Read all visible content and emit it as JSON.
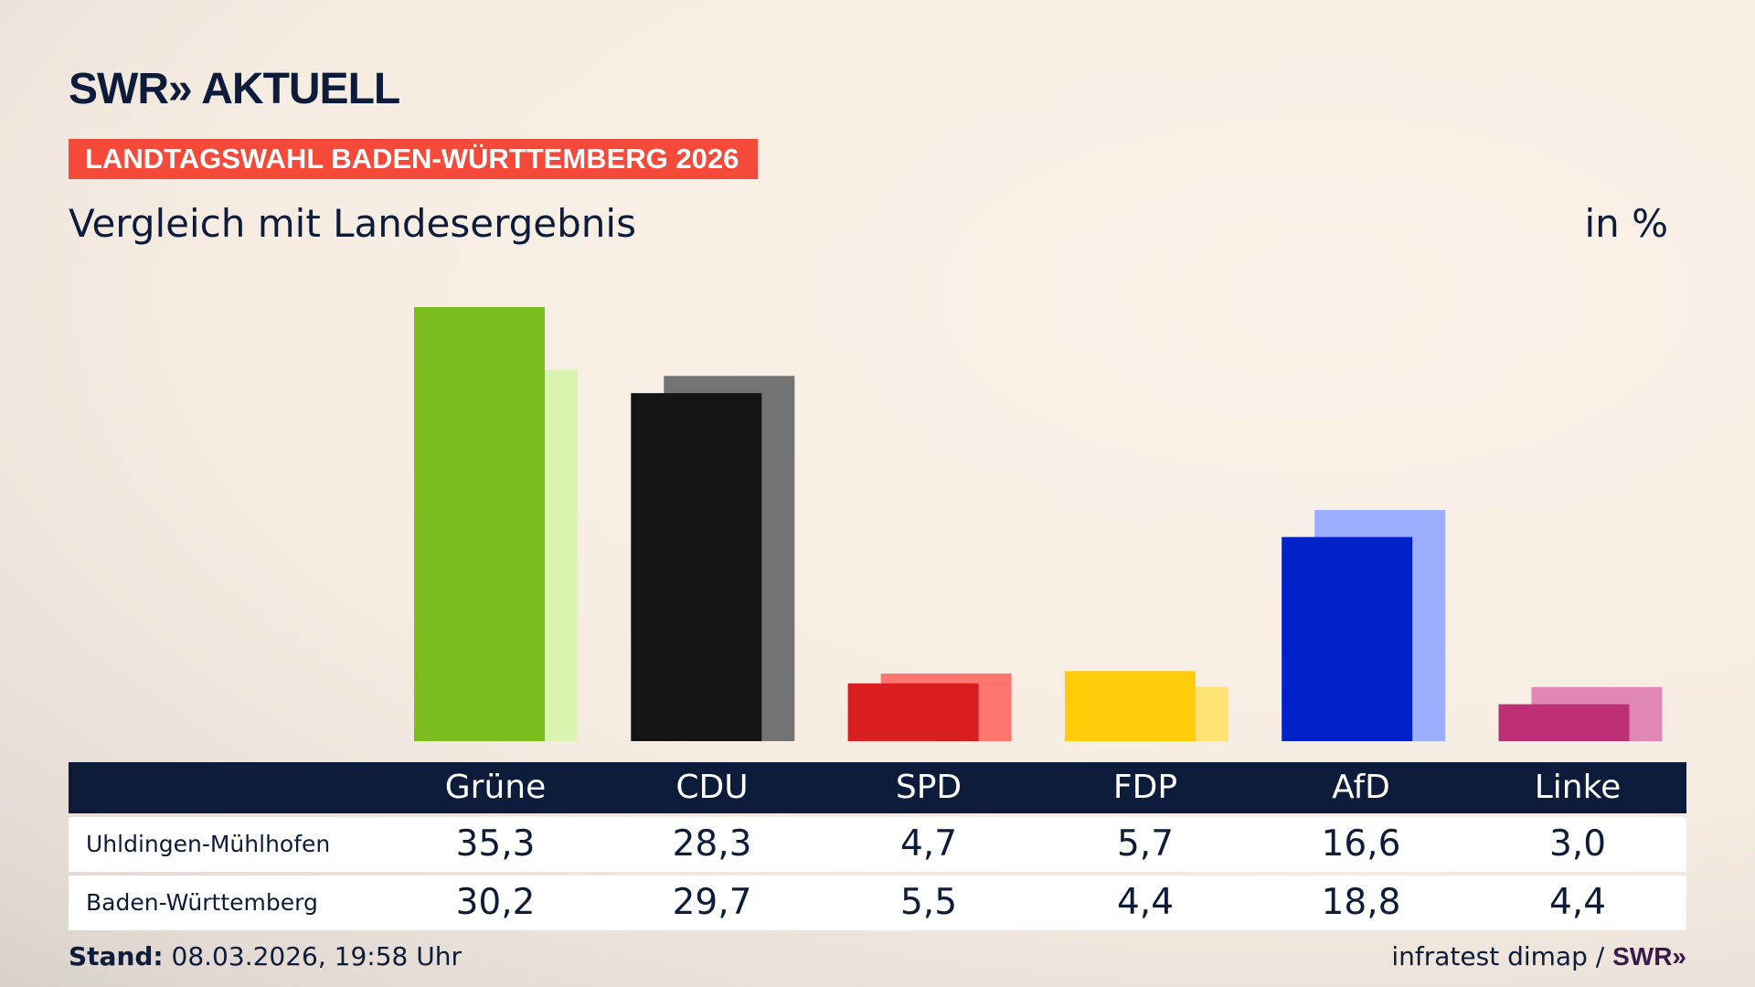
{
  "header": {
    "logo": "SWR» AKTUELL",
    "banner": "LANDTAGSWAHL BADEN-WÜRTTEMBERG 2026",
    "subtitle": "Vergleich mit Landesergebnis",
    "unit": "in %"
  },
  "chart_data": {
    "type": "bar",
    "categories": [
      "Grüne",
      "CDU",
      "SPD",
      "FDP",
      "AfD",
      "Linke"
    ],
    "series": [
      {
        "name": "Uhldingen-Mühlhofen",
        "values": [
          35.3,
          28.3,
          4.7,
          5.7,
          16.6,
          3.0
        ],
        "colors": [
          "#7bbd1e",
          "#141414",
          "#d81e1e",
          "#ffcc0a",
          "#0022c8",
          "#be3075"
        ]
      },
      {
        "name": "Baden-Württemberg",
        "values": [
          30.2,
          29.7,
          5.5,
          4.4,
          18.8,
          4.4
        ],
        "colors": [
          "#d9f5b0",
          "#737373",
          "#ff7570",
          "#ffe273",
          "#9caeff",
          "#e087b6"
        ]
      }
    ],
    "grid": false
  },
  "table": {
    "headers": [
      "Grüne",
      "CDU",
      "SPD",
      "FDP",
      "AfD",
      "Linke"
    ],
    "rows": [
      {
        "label": "Uhldingen-Mühlhofen",
        "values": [
          "35,3",
          "28,3",
          "4,7",
          "5,7",
          "16,6",
          "3,0"
        ]
      },
      {
        "label": "Baden-Württemberg",
        "values": [
          "30,2",
          "29,7",
          "5,5",
          "4,4",
          "18,8",
          "4,4"
        ]
      }
    ]
  },
  "footer": {
    "stand_label": "Stand:",
    "stand_value": "08.03.2026, 19:58 Uhr",
    "source": "infratest dimap /",
    "source_logo": "SWR»"
  }
}
